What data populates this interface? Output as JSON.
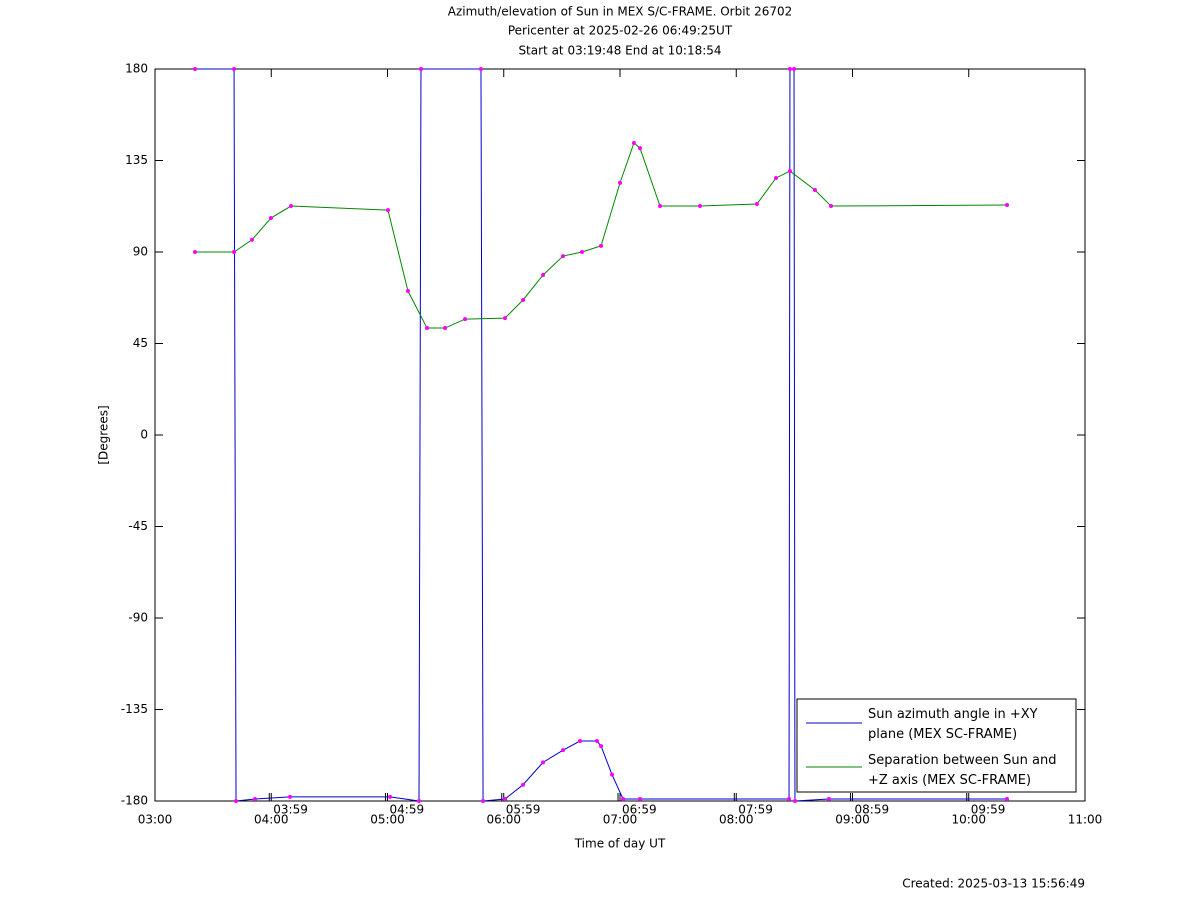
{
  "chart_data": {
    "type": "line",
    "title": "Azimuth/elevation of Sun in MEX S/C-FRAME.  Orbit 26702",
    "subtitles": [
      "Pericenter at 2025-02-26 06:49:25UT",
      "Start at 03:19:48 End at 10:18:54"
    ],
    "x_label": "Time of day UT",
    "y_label": "[Degrees]",
    "created": "Created: 2025-03-13 15:56:49",
    "xlim": [
      3,
      11
    ],
    "xticks": [
      {
        "value": 3,
        "label": "03:00"
      },
      {
        "value": 4,
        "label": "04:00"
      },
      {
        "value": 5,
        "label": "05:00"
      },
      {
        "value": 6,
        "label": "06:00"
      },
      {
        "value": 7,
        "label": "07:00"
      },
      {
        "value": 8,
        "label": "08:00"
      },
      {
        "value": 9,
        "label": "09:00"
      },
      {
        "value": 10,
        "label": "10:00"
      },
      {
        "value": 11,
        "label": "11:00"
      }
    ],
    "orbit_ticks": [
      {
        "value": 3.983,
        "label": "03:59"
      },
      {
        "value": 4.983,
        "label": "04:59"
      },
      {
        "value": 5.983,
        "label": "05:59"
      },
      {
        "value": 6.983,
        "label": "06:59"
      },
      {
        "value": 7.983,
        "label": "07:59"
      },
      {
        "value": 8.983,
        "label": "08:59"
      },
      {
        "value": 9.983,
        "label": "09:59"
      }
    ],
    "ylim": [
      -180,
      180
    ],
    "yticks": [
      -180,
      -135,
      -90,
      -45,
      0,
      45,
      90,
      135,
      180
    ],
    "grid": false,
    "marker_color": "#ff00ff",
    "series": [
      {
        "name": "Sun azimuth angle in +XY\nplane (MEX SC-FRAME)",
        "color": "#0000cc",
        "x": [
          3.344,
          3.68,
          3.697,
          3.86,
          4.161,
          5.022,
          5.271,
          5.288,
          5.804,
          5.822,
          6.011,
          6.166,
          6.338,
          6.51,
          6.656,
          6.802,
          6.837,
          6.931,
          7.026,
          7.172,
          8.454,
          8.462,
          8.497,
          8.505,
          8.797,
          10.329
        ],
        "values": [
          180,
          180,
          -180,
          -179,
          -178,
          -178,
          -180,
          180,
          180,
          -180,
          -179,
          -172,
          -161,
          -155,
          -150.5,
          -150.5,
          -153,
          -167,
          -179,
          -179,
          -179,
          180,
          180,
          -180,
          -179,
          -179
        ]
      },
      {
        "name": "Separation between Sun and\n+Z axis (MEX SC-FRAME)",
        "color": "#008800",
        "x": [
          3.344,
          3.68,
          3.834,
          3.998,
          4.17,
          5.004,
          5.176,
          5.34,
          5.495,
          5.667,
          6.011,
          6.166,
          6.338,
          6.51,
          6.673,
          6.837,
          7.0,
          7.12,
          7.172,
          7.344,
          7.688,
          8.178,
          8.342,
          8.462,
          8.677,
          8.815,
          10.329
        ],
        "values": [
          90,
          90,
          96,
          106.7,
          112.6,
          110.6,
          70.8,
          52.6,
          52.6,
          57,
          57.5,
          66.4,
          78.7,
          88,
          90,
          93,
          124,
          143.6,
          141.1,
          112.6,
          112.6,
          113.6,
          126.4,
          129.8,
          120.5,
          112.6,
          113.1
        ]
      }
    ]
  }
}
